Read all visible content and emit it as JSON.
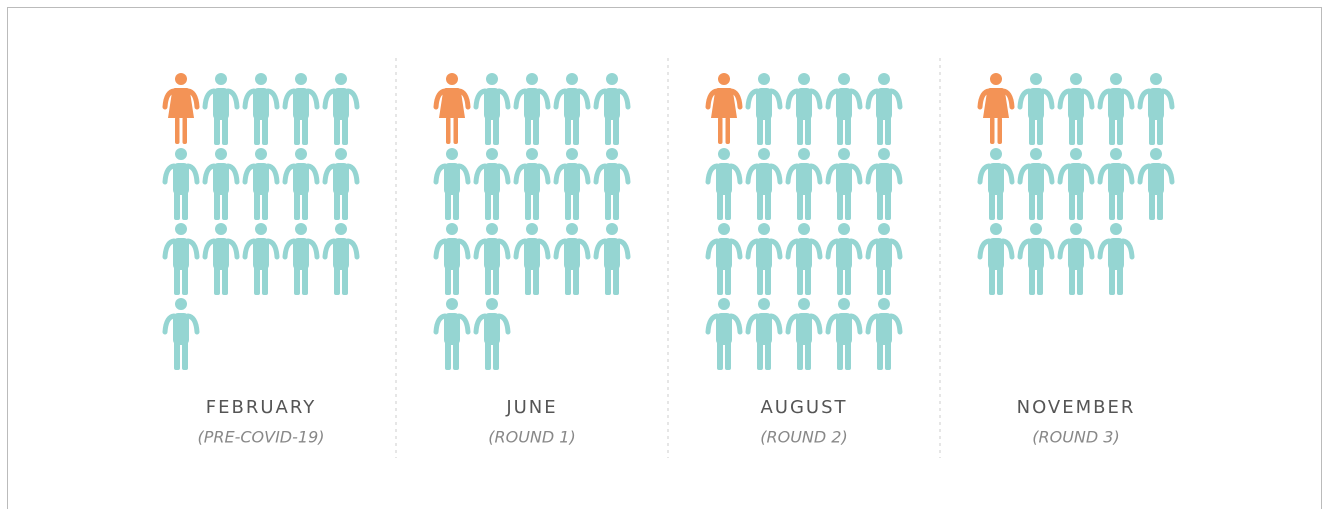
{
  "chart_data": {
    "type": "pictogram",
    "categories": [
      "FEBRUARY",
      "JUNE",
      "AUGUST",
      "NOVEMBER"
    ],
    "subtitles": [
      "(PRE-COVID-19)",
      "(ROUND 1)",
      "(ROUND 2)",
      "(ROUND 3)"
    ],
    "values": [
      16,
      17,
      20,
      14
    ],
    "highlight": [
      1,
      1,
      1,
      1
    ],
    "color": "#95d5d2",
    "highlight_color": "#f39356",
    "per_row": 5
  }
}
